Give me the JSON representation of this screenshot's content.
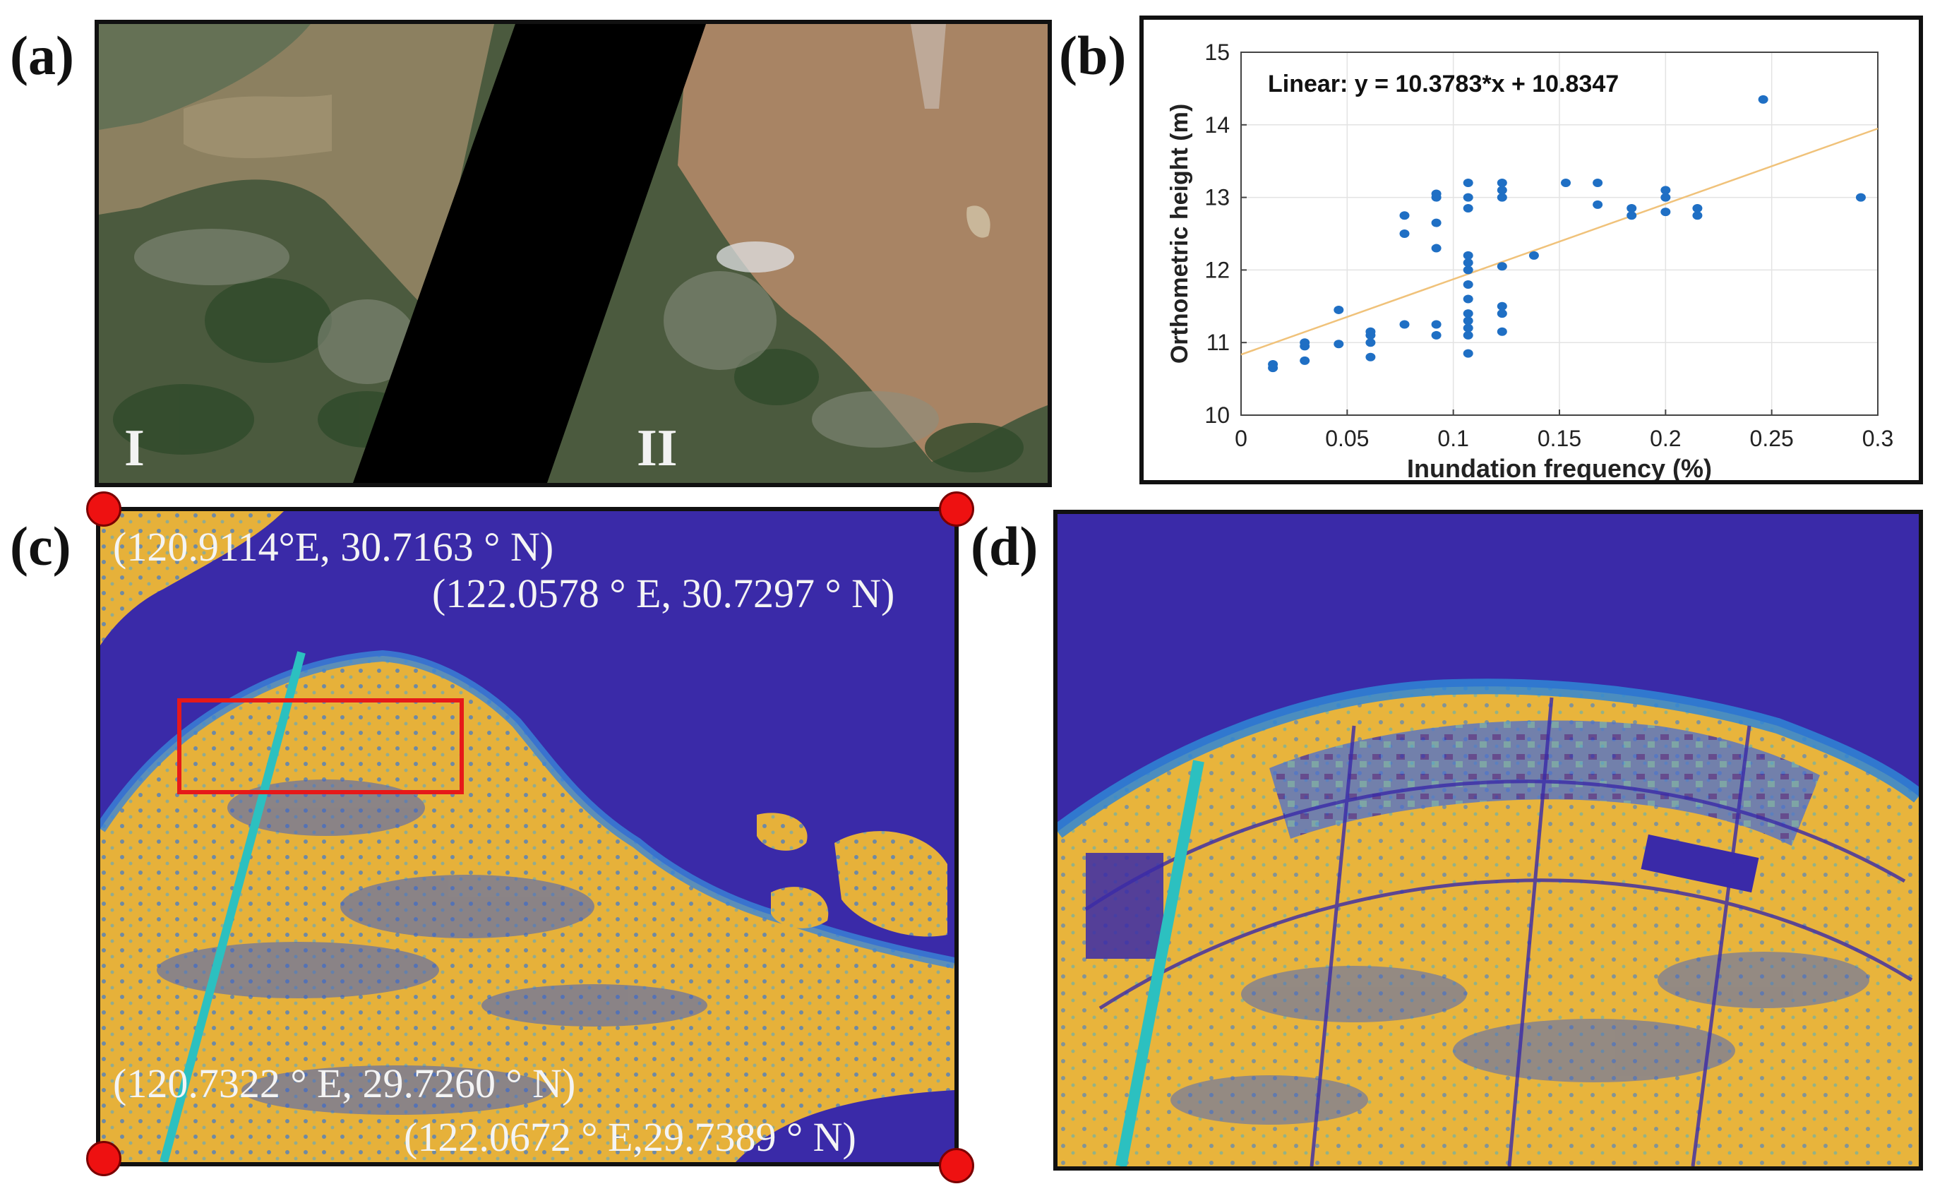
{
  "panels": {
    "a": {
      "label": "(a)",
      "scene_labels": [
        "I",
        "II"
      ]
    },
    "b": {
      "label": "(b)"
    },
    "c": {
      "label": "(c)",
      "corners": {
        "top_left": "(120.9114°E, 30.7163 ° N)",
        "top_right": "(122.0578 ° E, 30.7297 ° N)",
        "bottom_left": "(120.7322 ° E, 29.7260 ° N)",
        "bottom_right": "(122.0672 ° E,29.7389 ° N)"
      }
    },
    "d": {
      "label": "(d)"
    }
  },
  "colors": {
    "water": "#3a2aa8",
    "land": "#e8b53a",
    "wet": "#2f7fd6",
    "shore": "#2cc0c0",
    "marker": "#ee1111",
    "box": "#e61919",
    "point": "#1f6fc4",
    "fit": "#f0c27a"
  },
  "chart_data": {
    "type": "scatter",
    "equation": "Linear:  y = 10.3783*x + 10.8347",
    "xlabel": "Inundation frequency (%)",
    "ylabel": "Orthometric height (m)",
    "xlim": [
      0,
      0.3
    ],
    "ylim": [
      10,
      15
    ],
    "xticks": [
      "0",
      "0.05",
      "0.1",
      "0.15",
      "0.2",
      "0.25",
      "0.3"
    ],
    "yticks": [
      "10",
      "11",
      "12",
      "13",
      "14",
      "15"
    ],
    "grid": true,
    "fit": {
      "slope": 10.3783,
      "intercept": 10.8347
    },
    "points": [
      [
        0.015,
        10.65
      ],
      [
        0.015,
        10.7
      ],
      [
        0.03,
        10.75
      ],
      [
        0.03,
        10.95
      ],
      [
        0.03,
        11.0
      ],
      [
        0.046,
        10.98
      ],
      [
        0.046,
        11.45
      ],
      [
        0.061,
        10.8
      ],
      [
        0.061,
        11.0
      ],
      [
        0.061,
        11.1
      ],
      [
        0.061,
        11.15
      ],
      [
        0.077,
        11.25
      ],
      [
        0.077,
        12.5
      ],
      [
        0.077,
        12.75
      ],
      [
        0.092,
        11.1
      ],
      [
        0.092,
        11.25
      ],
      [
        0.092,
        12.3
      ],
      [
        0.092,
        12.65
      ],
      [
        0.092,
        13.0
      ],
      [
        0.092,
        13.05
      ],
      [
        0.107,
        10.85
      ],
      [
        0.107,
        11.1
      ],
      [
        0.107,
        11.2
      ],
      [
        0.107,
        11.3
      ],
      [
        0.107,
        11.4
      ],
      [
        0.107,
        11.6
      ],
      [
        0.107,
        11.8
      ],
      [
        0.107,
        12.0
      ],
      [
        0.107,
        12.1
      ],
      [
        0.107,
        12.2
      ],
      [
        0.107,
        12.85
      ],
      [
        0.107,
        13.0
      ],
      [
        0.107,
        13.2
      ],
      [
        0.123,
        11.15
      ],
      [
        0.123,
        11.4
      ],
      [
        0.123,
        11.5
      ],
      [
        0.123,
        12.05
      ],
      [
        0.123,
        13.0
      ],
      [
        0.123,
        13.1
      ],
      [
        0.123,
        13.2
      ],
      [
        0.138,
        12.2
      ],
      [
        0.153,
        13.2
      ],
      [
        0.168,
        12.9
      ],
      [
        0.168,
        13.2
      ],
      [
        0.184,
        12.75
      ],
      [
        0.184,
        12.85
      ],
      [
        0.2,
        12.8
      ],
      [
        0.2,
        13.0
      ],
      [
        0.2,
        13.1
      ],
      [
        0.215,
        12.75
      ],
      [
        0.215,
        12.85
      ],
      [
        0.246,
        14.35
      ],
      [
        0.292,
        13.0
      ]
    ]
  }
}
